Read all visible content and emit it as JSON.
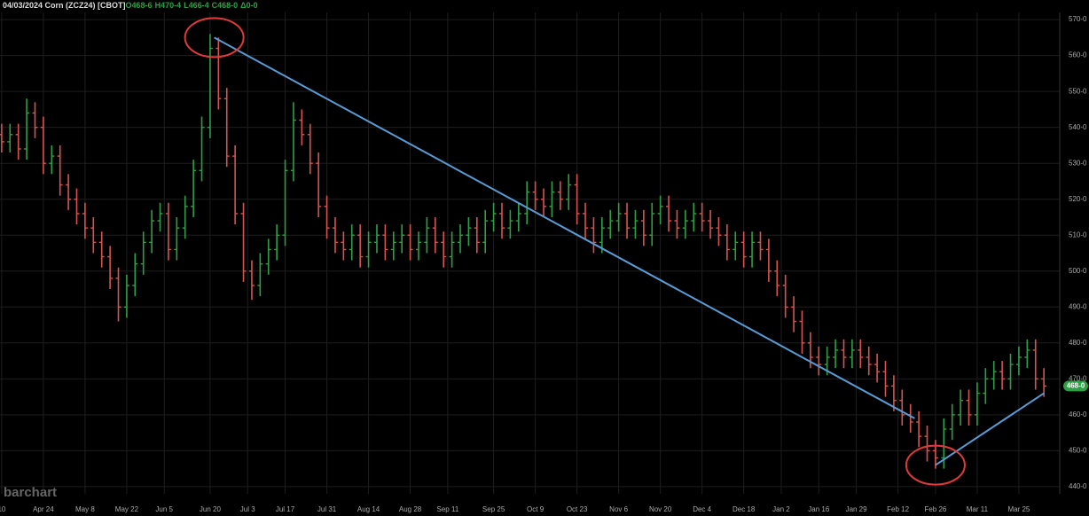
{
  "chart_data": {
    "type": "ohlc",
    "title": "04/03/2024 Corn (ZCZ24) [CBOT]",
    "quote": [
      "O468-6",
      "H470-4",
      "L466-4",
      "C468-0",
      "Δ0-0"
    ],
    "watermark": "barchart",
    "up_color": "#2ea043",
    "down_color": "#d9534f",
    "grid": true,
    "last_price": {
      "value": 468,
      "label": "468-0"
    },
    "ylim": [
      438,
      572
    ],
    "yticks": [
      {
        "value": 440,
        "label": "440-0"
      },
      {
        "value": 450,
        "label": "450-0"
      },
      {
        "value": 460,
        "label": "460-0"
      },
      {
        "value": 470,
        "label": "470-0"
      },
      {
        "value": 480,
        "label": "480-0"
      },
      {
        "value": 490,
        "label": "490-0"
      },
      {
        "value": 500,
        "label": "500-0"
      },
      {
        "value": 510,
        "label": "510-0"
      },
      {
        "value": 520,
        "label": "520-0"
      },
      {
        "value": 530,
        "label": "530-0"
      },
      {
        "value": 540,
        "label": "540-0"
      },
      {
        "value": 550,
        "label": "550-0"
      },
      {
        "value": 560,
        "label": "560-0"
      },
      {
        "value": 570,
        "label": "570-0"
      }
    ],
    "xlim": [
      -0.4,
      253.8
    ],
    "xticks": [
      {
        "value": 0,
        "label": "10"
      },
      {
        "value": 10,
        "label": "Apr 24"
      },
      {
        "value": 20,
        "label": "May 8"
      },
      {
        "value": 30,
        "label": "May 22"
      },
      {
        "value": 39,
        "label": "Jun 5"
      },
      {
        "value": 50,
        "label": "Jun 20"
      },
      {
        "value": 59,
        "label": "Jul 3"
      },
      {
        "value": 68,
        "label": "Jul 17"
      },
      {
        "value": 78,
        "label": "Jul 31"
      },
      {
        "value": 88,
        "label": "Aug 14"
      },
      {
        "value": 98,
        "label": "Aug 28"
      },
      {
        "value": 107,
        "label": "Sep 11"
      },
      {
        "value": 118,
        "label": "Sep 25"
      },
      {
        "value": 128,
        "label": "Oct 9"
      },
      {
        "value": 138,
        "label": "Oct 23"
      },
      {
        "value": 148,
        "label": "Nov 6"
      },
      {
        "value": 158,
        "label": "Nov 20"
      },
      {
        "value": 168,
        "label": "Dec 4"
      },
      {
        "value": 178,
        "label": "Dec 18"
      },
      {
        "value": 187,
        "label": "Jan 2"
      },
      {
        "value": 196,
        "label": "Jan 16"
      },
      {
        "value": 205,
        "label": "Jan 29"
      },
      {
        "value": 215,
        "label": "Feb 12"
      },
      {
        "value": 224,
        "label": "Feb 26"
      },
      {
        "value": 234,
        "label": "Mar 11"
      },
      {
        "value": 244,
        "label": "Mar 25"
      }
    ],
    "x": [
      0,
      2,
      4,
      6,
      8,
      10,
      12,
      14,
      16,
      18,
      20,
      22,
      24,
      26,
      28,
      30,
      32,
      34,
      36,
      38,
      40,
      42,
      44,
      46,
      48,
      50,
      52,
      54,
      56,
      58,
      60,
      62,
      64,
      66,
      68,
      70,
      72,
      74,
      76,
      78,
      80,
      82,
      84,
      86,
      88,
      90,
      92,
      94,
      96,
      98,
      100,
      102,
      104,
      106,
      108,
      110,
      112,
      114,
      116,
      118,
      120,
      122,
      124,
      126,
      128,
      130,
      132,
      134,
      136,
      138,
      140,
      142,
      144,
      146,
      148,
      150,
      152,
      154,
      156,
      158,
      160,
      162,
      164,
      166,
      168,
      170,
      172,
      174,
      176,
      178,
      180,
      182,
      184,
      186,
      188,
      190,
      192,
      194,
      196,
      198,
      200,
      202,
      204,
      206,
      208,
      210,
      212,
      214,
      216,
      218,
      220,
      222,
      224,
      226,
      228,
      230,
      232,
      234,
      236,
      238,
      240,
      242,
      244,
      246,
      248,
      250
    ],
    "open": [
      538,
      536,
      538,
      534,
      544,
      540,
      530,
      532,
      524,
      520,
      516,
      512,
      508,
      504,
      498,
      490,
      496,
      502,
      508,
      514,
      516,
      506,
      512,
      518,
      528,
      540,
      562,
      548,
      532,
      516,
      500,
      496,
      502,
      506,
      510,
      528,
      542,
      538,
      530,
      518,
      512,
      508,
      506,
      510,
      504,
      508,
      510,
      506,
      508,
      510,
      506,
      508,
      512,
      508,
      504,
      508,
      510,
      512,
      508,
      514,
      516,
      512,
      514,
      516,
      522,
      520,
      518,
      522,
      520,
      524,
      516,
      512,
      508,
      512,
      514,
      516,
      512,
      514,
      510,
      516,
      518,
      514,
      512,
      514,
      516,
      514,
      512,
      510,
      506,
      508,
      504,
      508,
      506,
      500,
      496,
      490,
      486,
      480,
      476,
      474,
      476,
      478,
      476,
      478,
      476,
      474,
      472,
      468,
      464,
      460,
      458,
      454,
      450,
      448,
      456,
      460,
      464,
      460,
      466,
      470,
      472,
      470,
      474,
      476,
      478,
      470
    ],
    "high": [
      541,
      541,
      541,
      548,
      547,
      543,
      535,
      535,
      527,
      523,
      519,
      515,
      511,
      507,
      501,
      499,
      505,
      511,
      517,
      519,
      519,
      515,
      521,
      531,
      543,
      566,
      565,
      551,
      535,
      519,
      503,
      505,
      509,
      513,
      531,
      547,
      545,
      541,
      533,
      521,
      515,
      511,
      513,
      513,
      511,
      513,
      513,
      511,
      513,
      513,
      511,
      515,
      515,
      511,
      511,
      513,
      515,
      515,
      517,
      519,
      519,
      517,
      519,
      525,
      525,
      523,
      525,
      525,
      527,
      527,
      519,
      515,
      515,
      517,
      519,
      519,
      517,
      517,
      519,
      521,
      521,
      517,
      517,
      519,
      519,
      517,
      515,
      513,
      511,
      511,
      511,
      511,
      509,
      503,
      499,
      493,
      489,
      483,
      479,
      479,
      481,
      481,
      481,
      481,
      479,
      477,
      475,
      471,
      467,
      463,
      461,
      457,
      453,
      459,
      463,
      467,
      467,
      469,
      473,
      475,
      475,
      477,
      479,
      481,
      481,
      473
    ],
    "low": [
      533,
      533,
      531,
      531,
      537,
      527,
      527,
      521,
      517,
      513,
      509,
      505,
      501,
      495,
      486,
      487,
      493,
      499,
      505,
      511,
      503,
      503,
      509,
      515,
      525,
      537,
      545,
      529,
      513,
      497,
      492,
      493,
      499,
      503,
      507,
      525,
      535,
      527,
      515,
      509,
      505,
      503,
      503,
      501,
      501,
      505,
      503,
      503,
      505,
      503,
      503,
      505,
      505,
      501,
      501,
      505,
      507,
      505,
      505,
      511,
      509,
      509,
      511,
      513,
      517,
      515,
      515,
      517,
      517,
      513,
      509,
      505,
      505,
      509,
      511,
      509,
      509,
      507,
      507,
      513,
      511,
      509,
      509,
      511,
      511,
      509,
      507,
      503,
      503,
      501,
      501,
      503,
      497,
      493,
      487,
      483,
      477,
      473,
      471,
      471,
      473,
      473,
      473,
      473,
      471,
      469,
      465,
      461,
      457,
      455,
      451,
      447,
      445,
      445,
      453,
      457,
      457,
      457,
      463,
      467,
      467,
      467,
      471,
      473,
      467,
      465
    ],
    "close": [
      536,
      538,
      534,
      544,
      540,
      530,
      532,
      524,
      520,
      516,
      512,
      508,
      504,
      498,
      490,
      496,
      502,
      508,
      514,
      516,
      506,
      512,
      518,
      528,
      540,
      562,
      548,
      532,
      516,
      500,
      496,
      502,
      506,
      510,
      528,
      542,
      538,
      530,
      518,
      512,
      508,
      506,
      510,
      504,
      508,
      510,
      506,
      508,
      510,
      506,
      508,
      512,
      508,
      504,
      508,
      510,
      512,
      508,
      514,
      516,
      512,
      514,
      516,
      522,
      520,
      518,
      522,
      520,
      524,
      516,
      512,
      508,
      512,
      514,
      516,
      512,
      514,
      510,
      516,
      518,
      514,
      512,
      514,
      516,
      514,
      512,
      510,
      506,
      508,
      504,
      508,
      506,
      500,
      496,
      490,
      486,
      480,
      476,
      474,
      476,
      478,
      476,
      478,
      476,
      474,
      472,
      468,
      464,
      460,
      458,
      454,
      450,
      448,
      456,
      460,
      464,
      460,
      466,
      470,
      472,
      470,
      474,
      476,
      478,
      470,
      468
    ],
    "trendlines": [
      {
        "x": [
          51,
          219
        ],
        "y": [
          565,
          459
        ],
        "color": "#5b9bd5"
      },
      {
        "x": [
          224,
          250
        ],
        "y": [
          446,
          466
        ],
        "color": "#5b9bd5"
      }
    ],
    "circles": [
      {
        "x": 51,
        "y": 565,
        "color": "#e03a3a"
      },
      {
        "x": 224,
        "y": 446,
        "color": "#e03a3a"
      }
    ]
  }
}
